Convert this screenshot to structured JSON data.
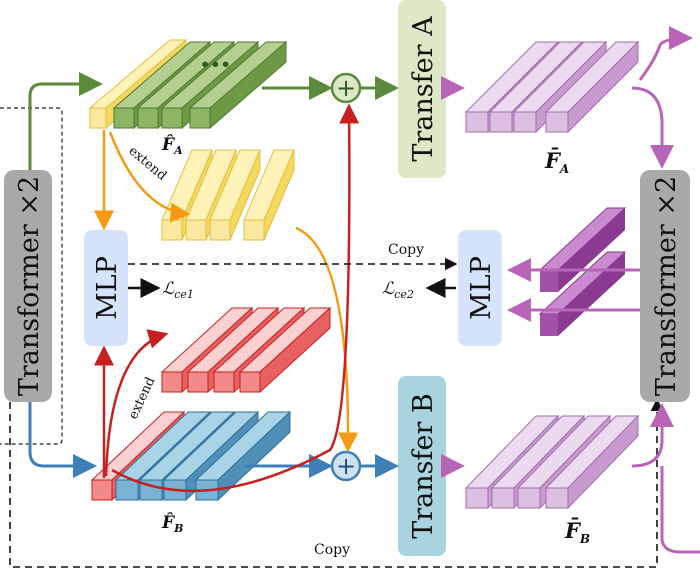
{
  "blocks": {
    "transformer_left": "Transformer ×2",
    "transformer_right": "Transformer ×2",
    "transfer_a": "Transfer A",
    "transfer_b": "Transfer B",
    "mlp_left": "MLP",
    "mlp_right": "MLP"
  },
  "labels": {
    "extend_top": "extend",
    "extend_bottom": "extend",
    "copy_top": "Copy",
    "copy_bottom": "Copy"
  },
  "math": {
    "f_hat_a": "F̂",
    "f_hat_a_sub": "A",
    "f_hat_b": "F̂",
    "f_hat_b_sub": "B",
    "f_bar_a": "F̄",
    "f_bar_a_sub": "A",
    "f_bar_b": "F̄",
    "f_bar_b_sub": "B",
    "loss_ce1": "ℒ",
    "loss_ce1_sub": "ce1",
    "loss_ce2": "ℒ",
    "loss_ce2_sub": "ce2",
    "plus": "+"
  },
  "colors": {
    "green": "#5a8a3a",
    "blue": "#3f7fb8",
    "red": "#c62020",
    "orange": "#f59a12",
    "purple": "#b865b8",
    "transformer_fill": "#a9a9a9",
    "mlp_fill": "#d6e4fb",
    "transfer_a_fill": "#dce8c6",
    "transfer_b_fill": "#a9d3dd"
  }
}
